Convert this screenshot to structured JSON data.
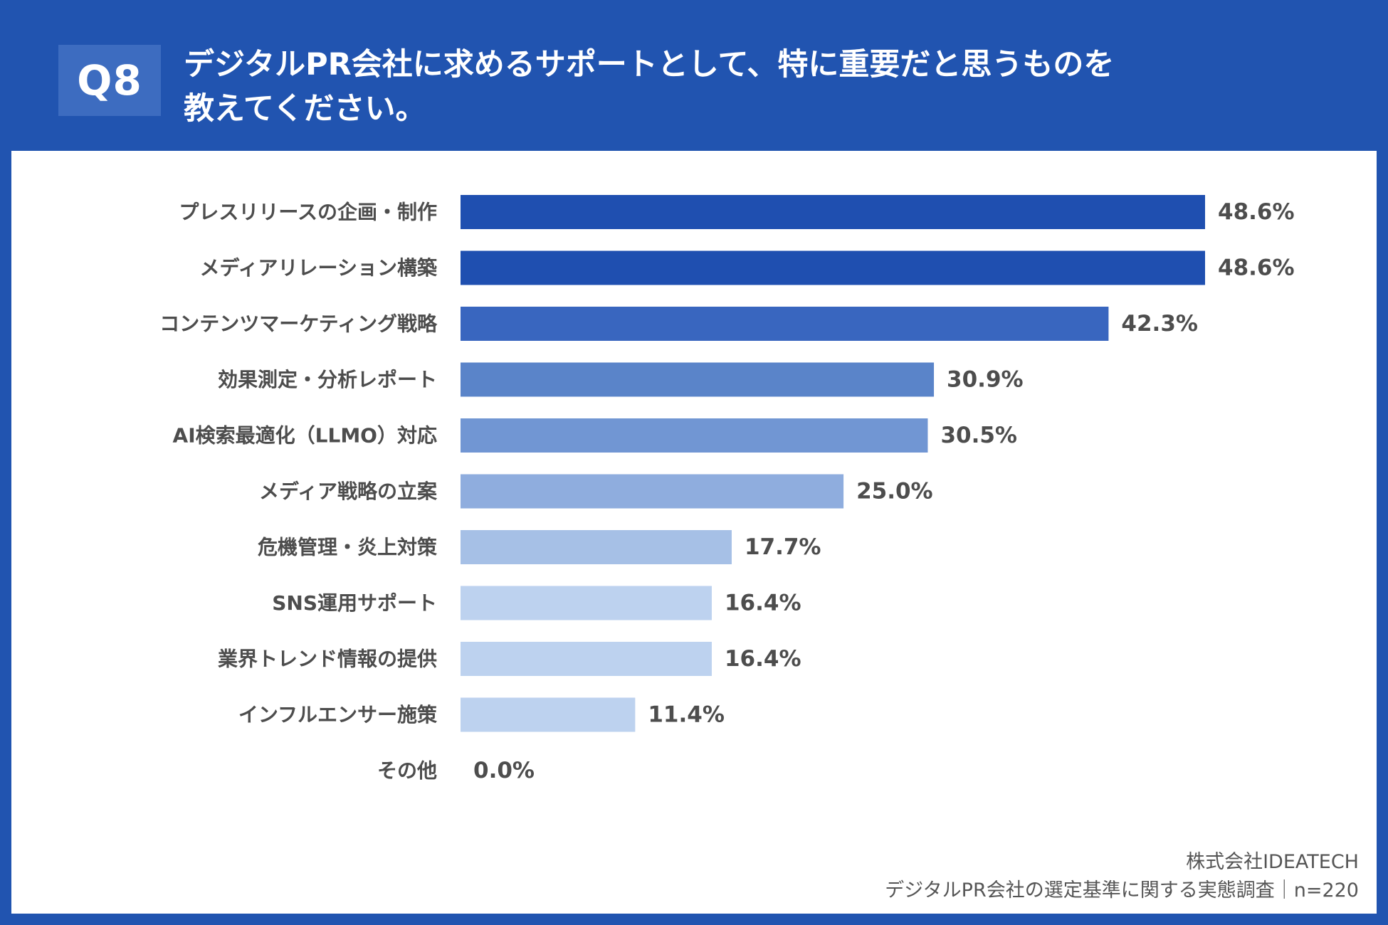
{
  "header": {
    "badge": "Q8",
    "title_line1": "デジタルPR会社に求めるサポートとして、特に重要だと思うものを",
    "title_line2": "教えてください。"
  },
  "colors": {
    "background": "#2154b0",
    "panel": "#ffffff",
    "bar_shades": [
      "#1f4fb0",
      "#1f4fb0",
      "#3966bf",
      "#5a84c9",
      "#7196d3",
      "#8fadde",
      "#a6c0e6",
      "#bdd2ef",
      "#bdd2ef",
      "#bdd2ef",
      "#bdd2ef"
    ],
    "text": "#4d4d4d"
  },
  "chart_data": {
    "type": "bar",
    "orientation": "horizontal",
    "title": "デジタルPR会社に求めるサポートとして、特に重要だと思うものを教えてください。",
    "categories": [
      "プレスリリースの企画・制作",
      "メディアリレーション構築",
      "コンテンツマーケティング戦略",
      "効果測定・分析レポート",
      "AI検索最適化（LLMO）対応",
      "メディア戦略の立案",
      "危機管理・炎上対策",
      "SNS運用サポート",
      "業界トレンド情報の提供",
      "インフルエンサー施策",
      "その他"
    ],
    "values": [
      48.6,
      48.6,
      42.3,
      30.9,
      30.5,
      25.0,
      17.7,
      16.4,
      16.4,
      11.4,
      0.0
    ],
    "labels": [
      "48.6%",
      "48.6%",
      "42.3%",
      "30.9%",
      "30.5%",
      "25.0%",
      "17.7%",
      "16.4%",
      "16.4%",
      "11.4%",
      "0.0%"
    ],
    "unit": "%",
    "xlim": [
      0,
      48.6
    ],
    "xlabel": "",
    "ylabel": "",
    "grid": false,
    "legend": "none"
  },
  "footer": {
    "company": "株式会社IDEATECH",
    "survey": "デジタルPR会社の選定基準に関する実態調査｜n=220"
  }
}
